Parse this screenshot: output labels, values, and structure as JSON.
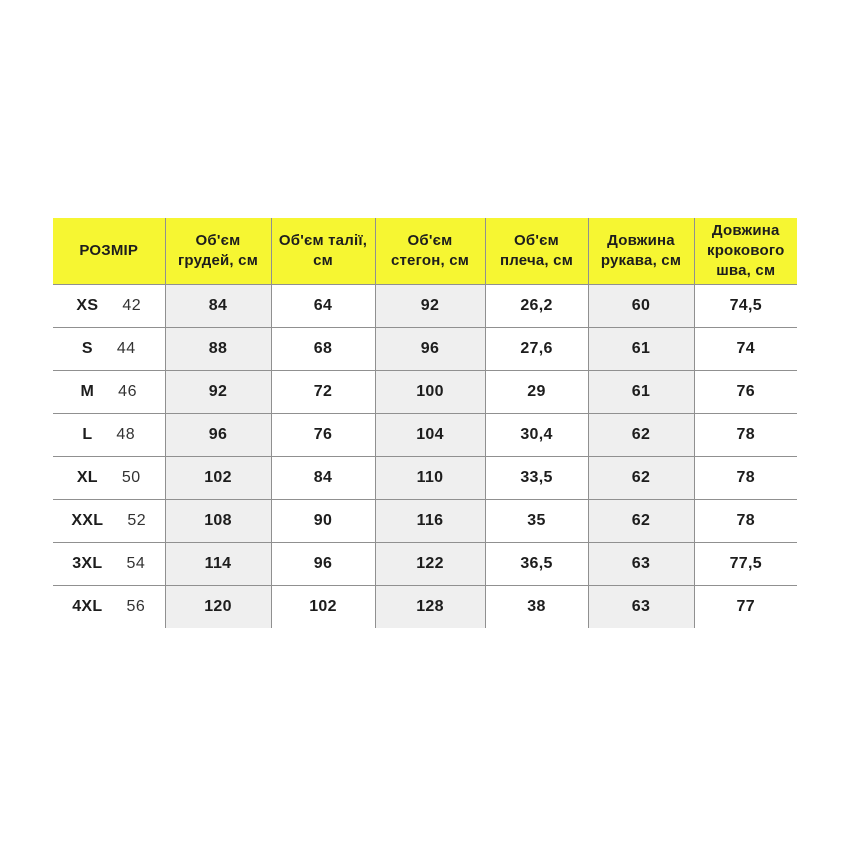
{
  "colors": {
    "header_bg": "#f6f632",
    "stripe_bg": "#efefef",
    "plain_bg": "#ffffff",
    "border": "#909090",
    "text": "#1d1d1d"
  },
  "chart_data": {
    "type": "table",
    "title": "",
    "columns": [
      "РОЗМІР",
      "Об'єм грудей, см",
      "Об'єм талії, см",
      "Об'єм стегон, см",
      "Об'єм плеча, см",
      "Довжина рукава, см",
      "Довжина крокового шва, см"
    ],
    "column_shaded": [
      false,
      true,
      false,
      true,
      false,
      true,
      false
    ],
    "rows": [
      {
        "size": "XS",
        "size_num": "42",
        "values": [
          "84",
          "64",
          "92",
          "26,2",
          "60",
          "74,5"
        ]
      },
      {
        "size": "S",
        "size_num": "44",
        "values": [
          "88",
          "68",
          "96",
          "27,6",
          "61",
          "74"
        ]
      },
      {
        "size": "M",
        "size_num": "46",
        "values": [
          "92",
          "72",
          "100",
          "29",
          "61",
          "76"
        ]
      },
      {
        "size": "L",
        "size_num": "48",
        "values": [
          "96",
          "76",
          "104",
          "30,4",
          "62",
          "78"
        ]
      },
      {
        "size": "XL",
        "size_num": "50",
        "values": [
          "102",
          "84",
          "110",
          "33,5",
          "62",
          "78"
        ]
      },
      {
        "size": "XXL",
        "size_num": "52",
        "values": [
          "108",
          "90",
          "116",
          "35",
          "62",
          "78"
        ]
      },
      {
        "size": "3XL",
        "size_num": "54",
        "values": [
          "114",
          "96",
          "122",
          "36,5",
          "63",
          "77,5"
        ]
      },
      {
        "size": "4XL",
        "size_num": "56",
        "values": [
          "120",
          "102",
          "128",
          "38",
          "63",
          "77"
        ]
      }
    ]
  }
}
